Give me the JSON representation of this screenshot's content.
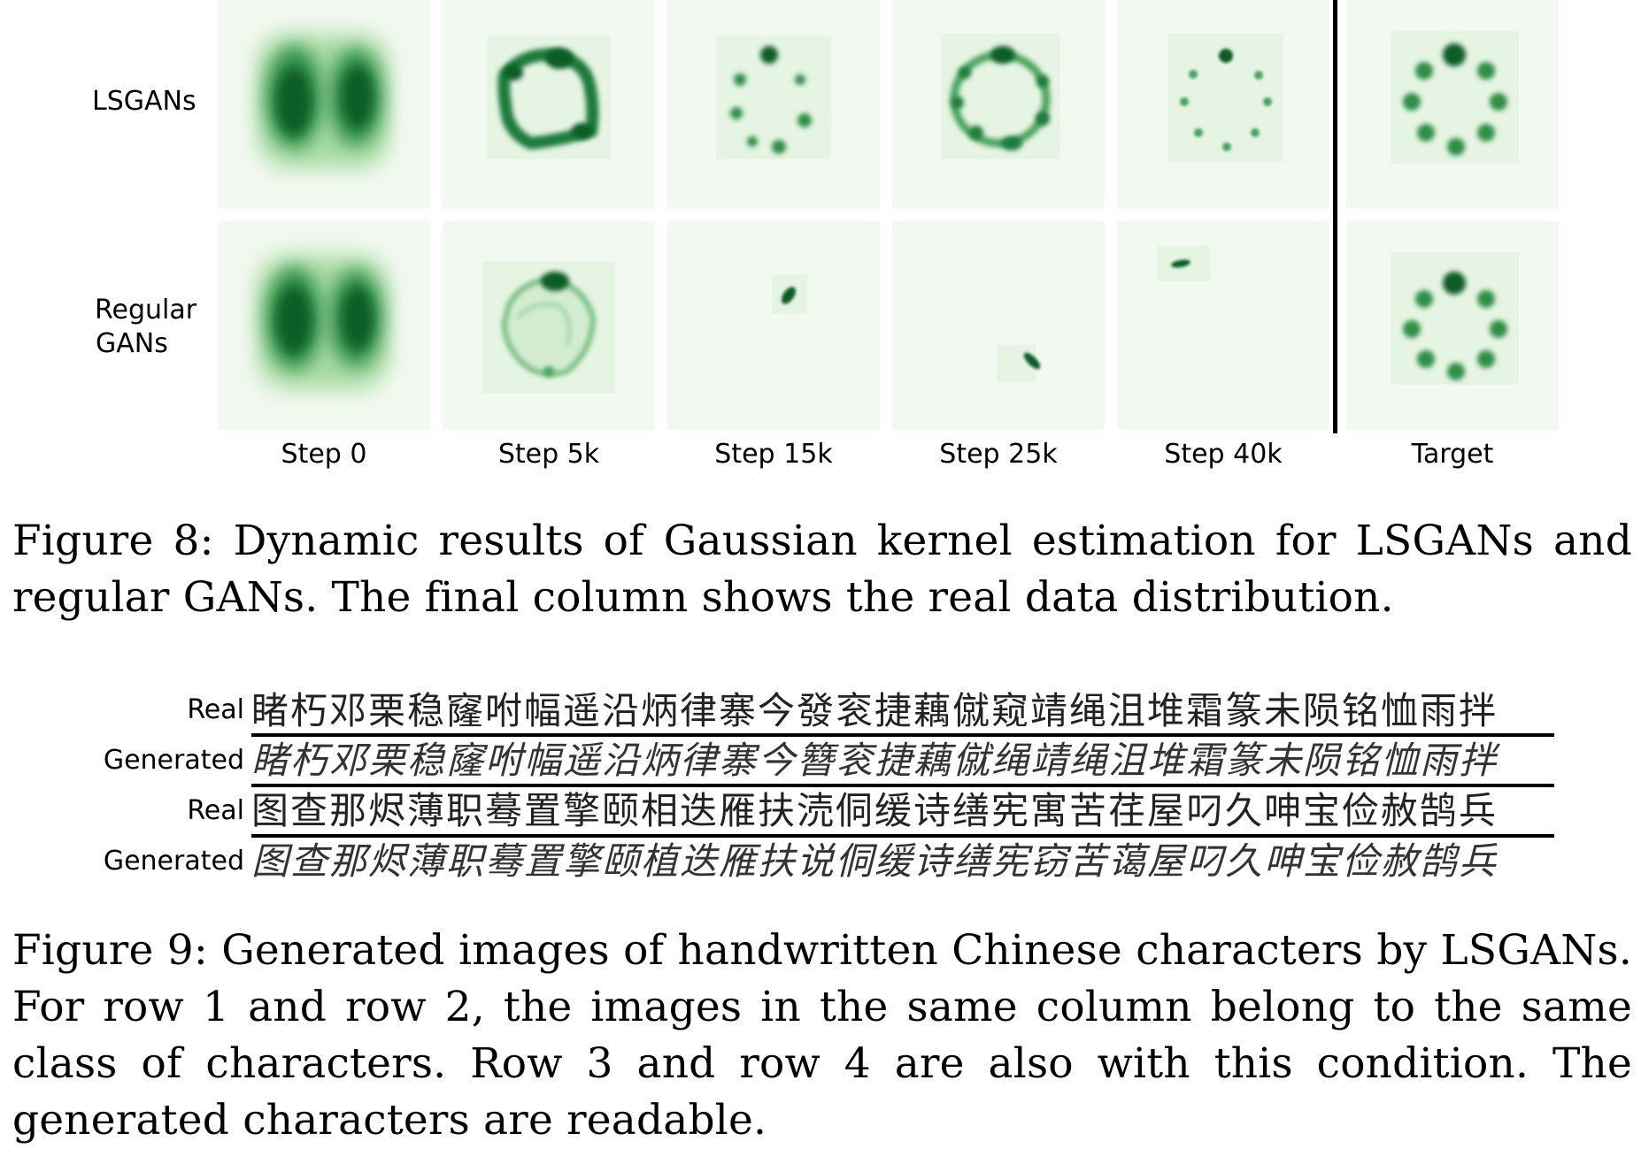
{
  "figure8": {
    "row_labels": {
      "lsgans": "LSGANs",
      "regular_line1": "Regular",
      "regular_line2": "GANs"
    },
    "column_labels": [
      "Step 0",
      "Step 5k",
      "Step 15k",
      "Step 25k",
      "Step 40k",
      "Target"
    ],
    "colors": {
      "panel_background": "#f2f9f0",
      "density_dark": "#0b5d27",
      "density_mid": "#2f8f47",
      "density_light": "#8bcf8f"
    },
    "caption": "Figure 8: Dynamic results of Gaussian kernel estimation for LSGANs and regular GANs. The final column shows the real data distribution."
  },
  "figure9": {
    "rows": [
      {
        "label": "Real",
        "characters": "睹朽邓栗稳窿咐幅遥沿炳律寨今發衮捷藕僦窥靖绳沮堆霜篆未陨铭恤雨拌"
      },
      {
        "label": "Generated",
        "characters": "睹朽邓栗稳窿咐幅遥沿炳律寨今簪衮捷藕僦绳靖绳沮堆霜篆未陨铭恤雨拌"
      },
      {
        "label": "Real",
        "characters": "图查那烬薄职蓦置擎颐相迭雁扶涜侗缓诗缮宪寓苦荏屋叼久呻宝俭赦鹄兵"
      },
      {
        "label": "Generated",
        "characters": "图查那烬薄职蓦置擎颐植迭雁扶说侗缓诗缮宪窃苦蔼屋叼久呻宝俭赦鹄兵"
      }
    ],
    "caption": "Figure 9: Generated images of handwritten Chinese characters by LSGANs. For row 1 and row 2, the images in the same column belong to the same class of characters. Row 3 and row 4 are also with this condition. The generated characters are readable."
  }
}
